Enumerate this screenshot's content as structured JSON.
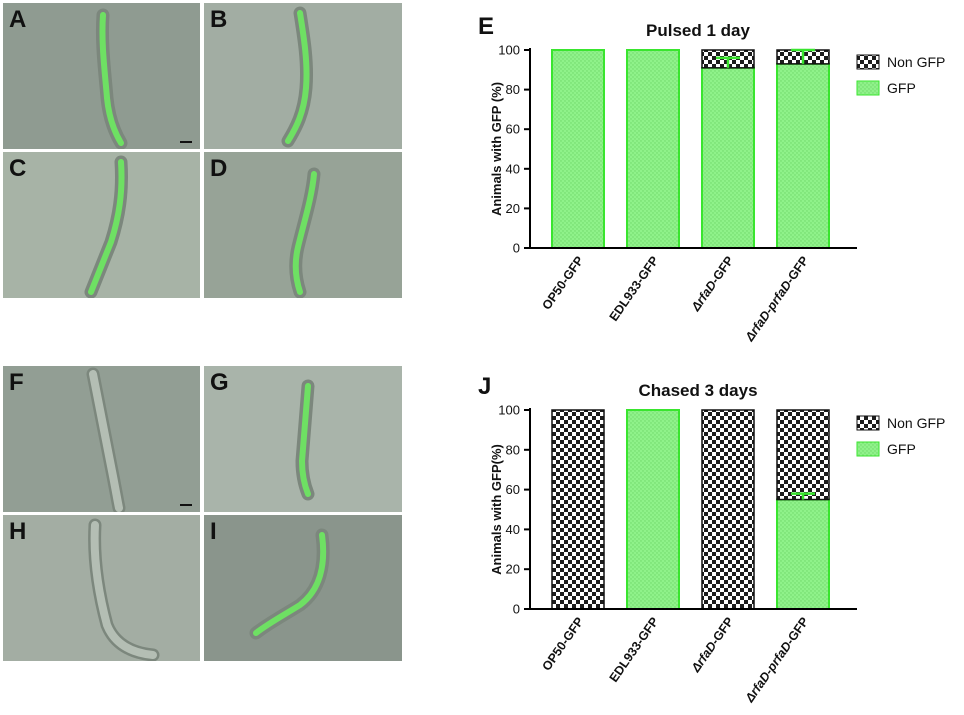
{
  "micrograph_panels": [
    {
      "label": "A",
      "bg": "#8f9b91",
      "has_scale_bar": true
    },
    {
      "label": "B",
      "bg": "#a2ada3",
      "has_scale_bar": false
    },
    {
      "label": "C",
      "bg": "#a7b3a6",
      "has_scale_bar": false
    },
    {
      "label": "D",
      "bg": "#97a397",
      "has_scale_bar": false
    },
    {
      "label": "F",
      "bg": "#929e94",
      "has_scale_bar": true
    },
    {
      "label": "G",
      "bg": "#a9b4aa",
      "has_scale_bar": false
    },
    {
      "label": "H",
      "bg": "#a3ada3",
      "has_scale_bar": false
    },
    {
      "label": "I",
      "bg": "#8a958c",
      "has_scale_bar": false
    }
  ],
  "colors": {
    "gfp_fill": "#8ff28a",
    "gfp_edge": "#39e52e",
    "checker_dark": "#1c1c1c",
    "checker_light": "#ffffff",
    "axis": "#000000"
  },
  "chart_data": [
    {
      "panel_label": "E",
      "type": "bar",
      "stacked": true,
      "title": "Pulsed 1 day",
      "ylabel": "Animals with GFP (%)",
      "ylim": [
        0,
        100
      ],
      "yticks": [
        0,
        20,
        40,
        60,
        80,
        100
      ],
      "categories": [
        "OP50-GFP",
        "EDL933-GFP",
        "ΔrfaD-GFP",
        "ΔrfaD-prfaD-GFP"
      ],
      "series": [
        {
          "name": "GFP",
          "values": [
            100,
            100,
            91,
            93
          ],
          "errors": [
            0,
            0,
            5,
            7
          ]
        },
        {
          "name": "Non GFP",
          "values": [
            0,
            0,
            9,
            7
          ]
        }
      ],
      "legend": [
        "Non GFP",
        "GFP"
      ],
      "legend_position": "right"
    },
    {
      "panel_label": "J",
      "type": "bar",
      "stacked": true,
      "title": "Chased 3 days",
      "ylabel": "Animals with GFP(%)",
      "ylim": [
        0,
        100
      ],
      "yticks": [
        0,
        20,
        40,
        60,
        80,
        100
      ],
      "categories": [
        "OP50-GFP",
        "EDL933-GFP",
        "ΔrfaD-GFP",
        "ΔrfaD-prfaD-GFP"
      ],
      "series": [
        {
          "name": "GFP",
          "values": [
            0,
            100,
            0,
            55
          ],
          "errors": [
            0,
            0,
            0,
            3
          ]
        },
        {
          "name": "Non GFP",
          "values": [
            100,
            0,
            100,
            45
          ]
        }
      ],
      "legend": [
        "Non GFP",
        "GFP"
      ],
      "legend_position": "right"
    }
  ]
}
